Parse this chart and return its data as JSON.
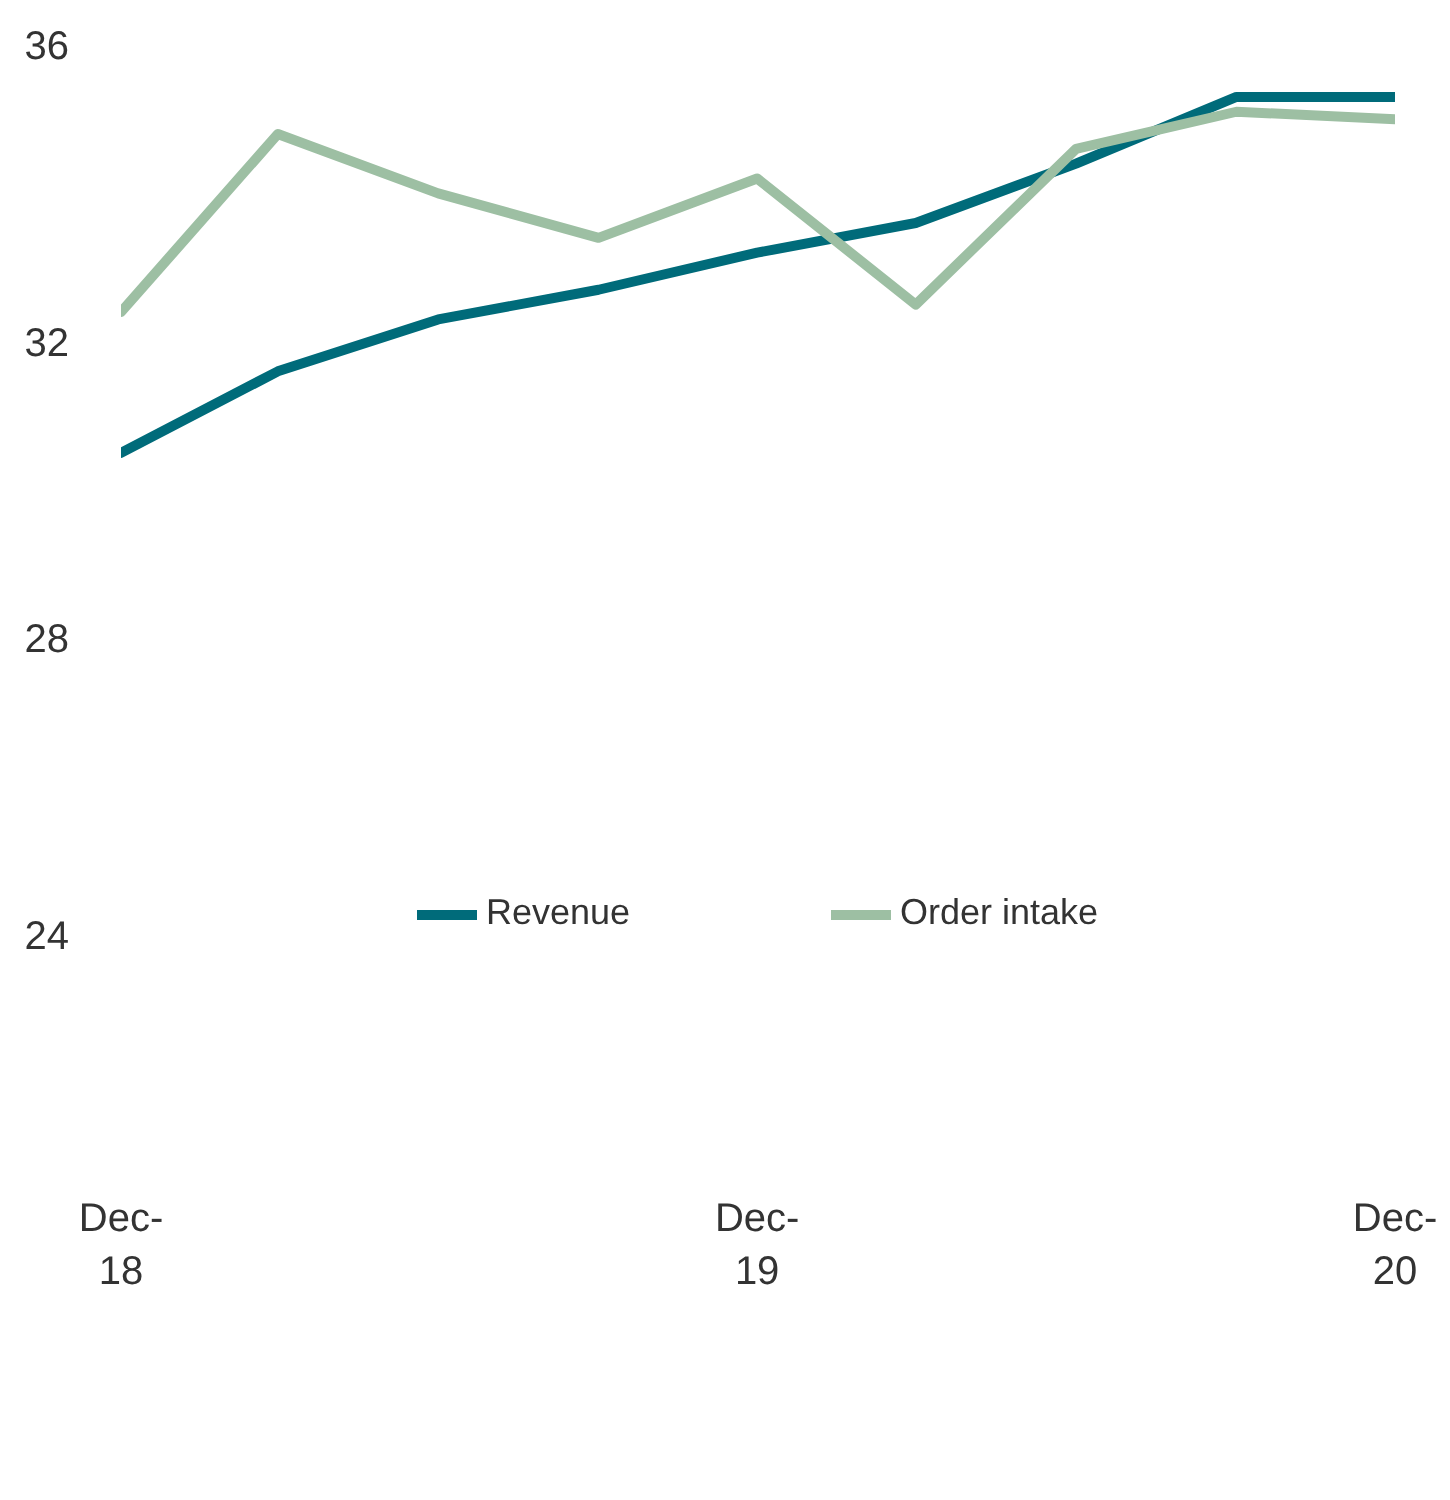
{
  "chart_data": {
    "type": "line",
    "x": [
      "2018-12",
      "2019-03",
      "2019-06",
      "2019-09",
      "2019-12",
      "2020-03",
      "2020-06",
      "2020-09",
      "2020-12"
    ],
    "series": [
      {
        "name": "Revenue",
        "color": "#006b7a",
        "values": [
          30.5,
          31.6,
          32.3,
          32.7,
          33.2,
          33.6,
          34.4,
          35.3,
          35.3
        ]
      },
      {
        "name": "Order intake",
        "color": "#9dbfa3",
        "values": [
          32.4,
          34.8,
          34.0,
          33.4,
          34.2,
          32.5,
          34.6,
          35.1,
          35.0
        ]
      }
    ],
    "ylim": [
      24,
      36
    ],
    "yticks": [
      24,
      28,
      32,
      36
    ],
    "xlim": [
      "2018-12",
      "2020-12"
    ],
    "xticks": [
      {
        "value": "2018-12",
        "label": "Dec-18"
      },
      {
        "value": "2019-12",
        "label": "Dec-19"
      },
      {
        "value": "2020-12",
        "label": "Dec-20"
      }
    ],
    "grid": false,
    "legend": "bottom",
    "line_style": "solid"
  }
}
